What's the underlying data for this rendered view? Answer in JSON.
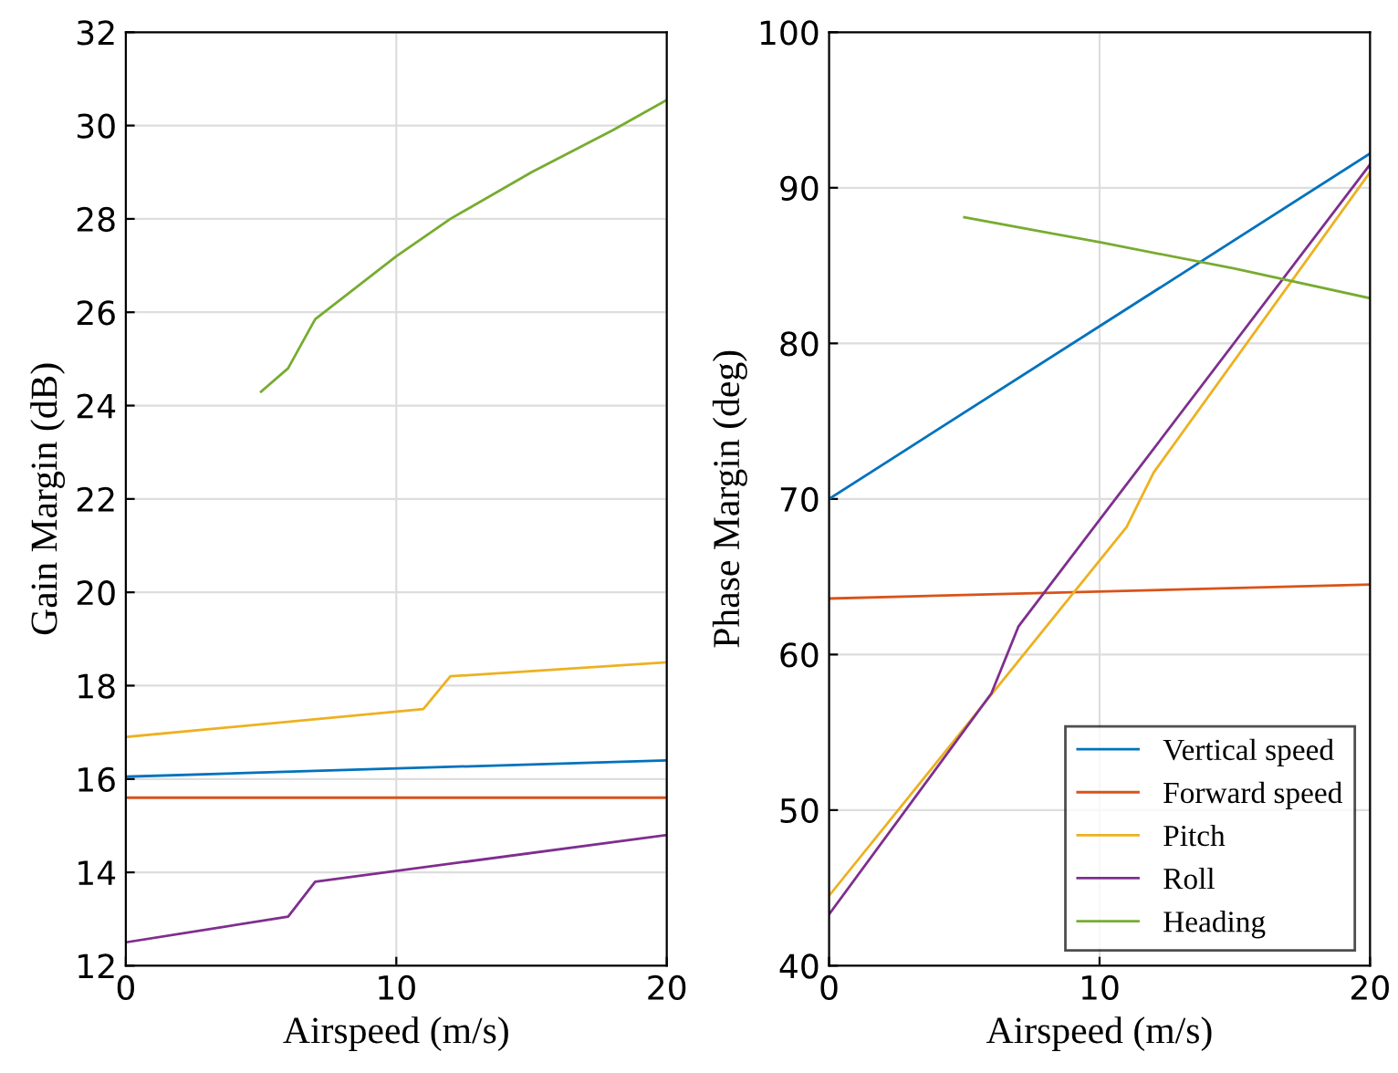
{
  "chart_data": [
    {
      "type": "line",
      "xlabel": "Airspeed (m/s)",
      "ylabel": "Gain Margin (dB)",
      "xlim": [
        0,
        20
      ],
      "xticks": [
        0,
        10,
        20
      ],
      "ylim": [
        12,
        32
      ],
      "yticks": [
        12,
        14,
        16,
        18,
        20,
        22,
        24,
        26,
        28,
        30,
        32
      ],
      "grid": true,
      "legend": false,
      "series": [
        {
          "color": "#0072bd",
          "x": [
            0,
            20
          ],
          "values": [
            16.05,
            16.4
          ]
        },
        {
          "color": "#d95319",
          "x": [
            0,
            20
          ],
          "values": [
            15.6,
            15.6
          ]
        },
        {
          "color": "#edb120",
          "x": [
            0,
            11,
            12,
            20
          ],
          "values": [
            16.9,
            17.5,
            18.2,
            18.5
          ]
        },
        {
          "color": "#7e2f8e",
          "x": [
            0,
            6,
            7,
            20
          ],
          "values": [
            12.5,
            13.05,
            13.8,
            14.8
          ]
        },
        {
          "color": "#77ac30",
          "x": [
            5,
            6,
            7,
            8,
            10,
            12,
            15,
            18,
            20
          ],
          "values": [
            24.3,
            24.8,
            25.85,
            26.3,
            27.2,
            28.0,
            29.0,
            29.9,
            30.55
          ]
        }
      ]
    },
    {
      "type": "line",
      "xlabel": "Airspeed (m/s)",
      "ylabel": "Phase Margin (deg)",
      "xlim": [
        0,
        20
      ],
      "xticks": [
        0,
        10,
        20
      ],
      "ylim": [
        40,
        100
      ],
      "yticks": [
        40,
        50,
        60,
        70,
        80,
        90,
        100
      ],
      "grid": true,
      "legend": "bottom right",
      "series": [
        {
          "name": "Vertical speed",
          "color": "#0072bd",
          "x": [
            0,
            20
          ],
          "values": [
            70,
            92.2
          ]
        },
        {
          "name": "Forward speed",
          "color": "#d95319",
          "x": [
            0,
            20
          ],
          "values": [
            63.6,
            64.5
          ]
        },
        {
          "name": "Pitch",
          "color": "#edb120",
          "x": [
            0,
            11,
            12,
            20
          ],
          "values": [
            44.5,
            68.2,
            71.7,
            91.0
          ]
        },
        {
          "name": "Roll",
          "color": "#7e2f8e",
          "x": [
            0,
            6,
            7,
            20
          ],
          "values": [
            43.3,
            57.5,
            61.8,
            91.5
          ]
        },
        {
          "name": "Heading",
          "color": "#77ac30",
          "x": [
            5,
            10,
            15,
            20
          ],
          "values": [
            88.1,
            86.5,
            84.8,
            82.9
          ]
        }
      ]
    }
  ]
}
